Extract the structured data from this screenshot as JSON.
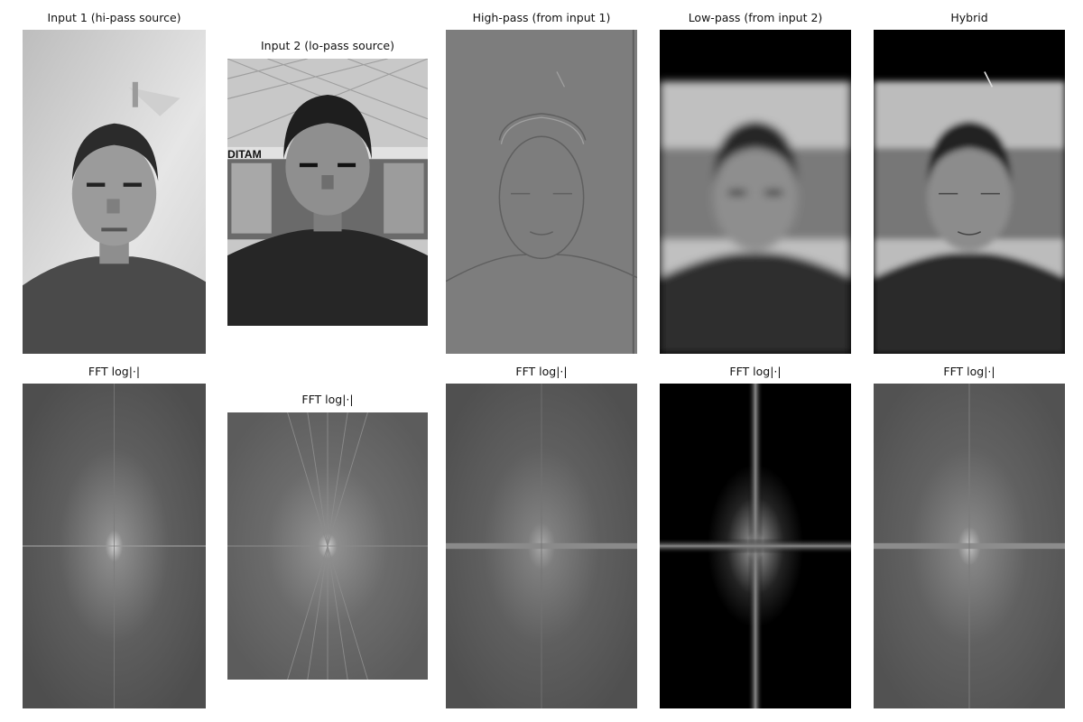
{
  "panels_row1": [
    {
      "title": "Input 1 (hi-pass source)"
    },
    {
      "title": "Input 2 (lo-pass source)"
    },
    {
      "title": "High-pass (from input 1)"
    },
    {
      "title": "Low-pass (from input 2)"
    },
    {
      "title": "Hybrid"
    }
  ],
  "panels_row2": [
    {
      "title": "FFT log|·|"
    },
    {
      "title": "FFT log|·|"
    },
    {
      "title": "FFT log|·|"
    },
    {
      "title": "FFT log|·|"
    },
    {
      "title": "FFT log|·|"
    }
  ],
  "overlay_text": {
    "sign_fragment": "DITAM"
  }
}
